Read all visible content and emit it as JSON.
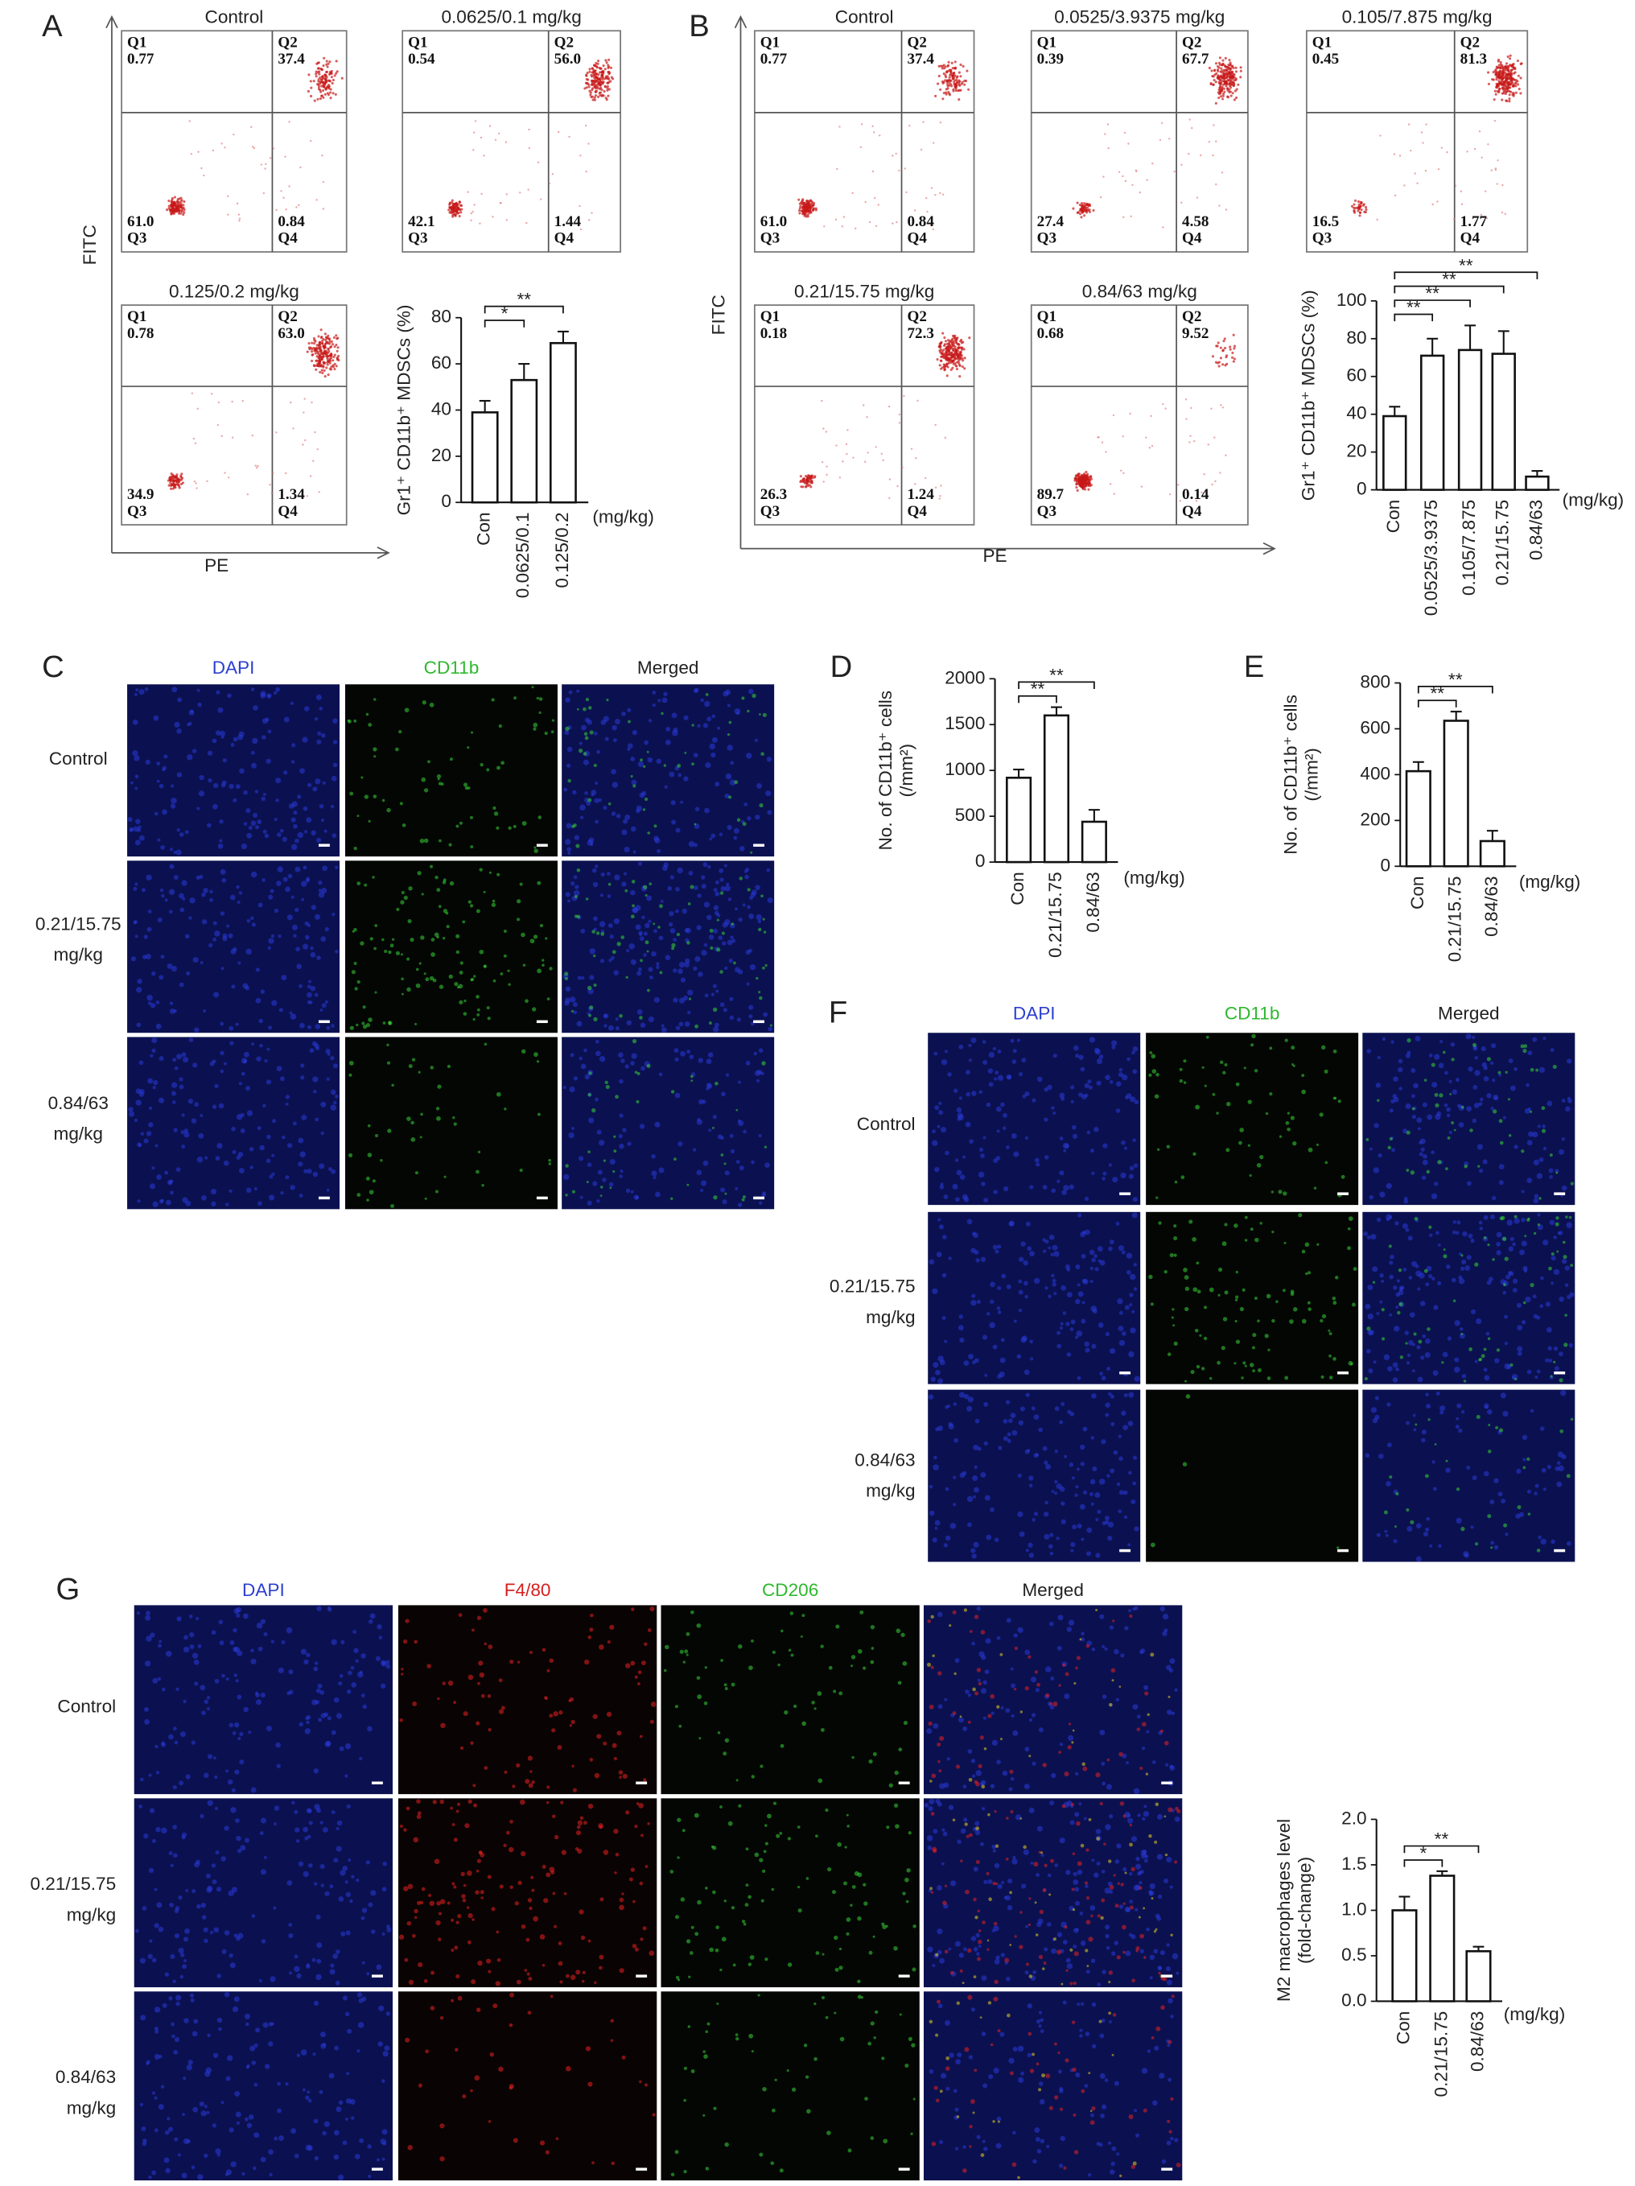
{
  "panel_letters": [
    "A",
    "B",
    "C",
    "D",
    "E",
    "F",
    "G"
  ],
  "flow_cytometry": {
    "y_axis_label": "FITC",
    "x_axis_label": "PE",
    "quadrant_names": [
      "Q1",
      "Q2",
      "Q3",
      "Q4"
    ],
    "panel_a": [
      {
        "title": "Control",
        "values": [
          "0.77",
          "37.4",
          "61.0",
          "0.84"
        ]
      },
      {
        "title": "0.0625/0.1 mg/kg",
        "values": [
          "0.54",
          "56.0",
          "42.1",
          "1.44"
        ]
      },
      {
        "title": "0.125/0.2 mg/kg",
        "values": [
          "0.78",
          "63.0",
          "34.9",
          "1.34"
        ]
      }
    ],
    "panel_b": [
      {
        "title": "Control",
        "values": [
          "0.77",
          "37.4",
          "61.0",
          "0.84"
        ]
      },
      {
        "title": "0.0525/3.9375 mg/kg",
        "values": [
          "0.39",
          "67.7",
          "27.4",
          "4.58"
        ]
      },
      {
        "title": "0.105/7.875 mg/kg",
        "values": [
          "0.45",
          "81.3",
          "16.5",
          "1.77"
        ]
      },
      {
        "title": "0.21/15.75 mg/kg",
        "values": [
          "0.18",
          "72.3",
          "26.3",
          "1.24"
        ]
      },
      {
        "title": "0.84/63 mg/kg",
        "values": [
          "0.68",
          "9.52",
          "89.7",
          "0.14"
        ]
      }
    ]
  },
  "immunofluorescence": {
    "panel_c": {
      "channels": [
        "DAPI",
        "CD11b",
        "Merged"
      ],
      "rows": [
        [
          "Control"
        ],
        [
          "0.21/15.75",
          "mg/kg"
        ],
        [
          "0.84/63",
          "mg/kg"
        ]
      ]
    },
    "panel_f": {
      "channels": [
        "DAPI",
        "CD11b",
        "Merged"
      ],
      "rows": [
        [
          "Control"
        ],
        [
          "0.21/15.75",
          "mg/kg"
        ],
        [
          "0.84/63",
          "mg/kg"
        ]
      ]
    },
    "panel_g": {
      "channels": [
        "DAPI",
        "F4/80",
        "CD206",
        "Merged"
      ],
      "rows": [
        [
          "Control"
        ],
        [
          "0.21/15.75",
          "mg/kg"
        ],
        [
          "0.84/63",
          "mg/kg"
        ]
      ]
    }
  },
  "chart_data": [
    {
      "type": "bar",
      "ylabel": [
        "Gr1⁺ CD11b⁺ MDSCs (%)"
      ],
      "x_unit": "(mg/kg)",
      "categories": [
        "Con",
        "0.0625/0.1",
        "0.125/0.2"
      ],
      "values": [
        39,
        53,
        69
      ],
      "errors": [
        5,
        7,
        5
      ],
      "ylim": [
        0,
        80
      ],
      "yticks": [
        0,
        20,
        40,
        60,
        80
      ],
      "significance": [
        "*",
        "**"
      ],
      "color": "#ffffff"
    },
    {
      "type": "bar",
      "ylabel": [
        "Gr1⁺ CD11b⁺ MDSCs (%)"
      ],
      "x_unit": "(mg/kg)",
      "categories": [
        "Con",
        "0.0525/3.9375",
        "0.105/7.875",
        "0.21/15.75",
        "0.84/63"
      ],
      "values": [
        39,
        71,
        74,
        72,
        7
      ],
      "errors": [
        5,
        9,
        13,
        12,
        3
      ],
      "ylim": [
        0,
        100
      ],
      "yticks": [
        0,
        20,
        40,
        60,
        80,
        100
      ],
      "significance": [
        "**",
        "**",
        "**",
        "**"
      ],
      "color": "#ffffff"
    },
    {
      "type": "bar",
      "ylabel": [
        "No. of CD11b⁺ cells",
        "(/mm²)"
      ],
      "x_unit": "(mg/kg)",
      "categories": [
        "Con",
        "0.21/15.75",
        "0.84/63"
      ],
      "values": [
        920,
        1600,
        440
      ],
      "errors": [
        90,
        90,
        130
      ],
      "ylim": [
        0,
        2000
      ],
      "yticks": [
        0,
        500,
        1000,
        1500,
        2000
      ],
      "significance": [
        "**",
        "**"
      ],
      "color": "#ffffff"
    },
    {
      "type": "bar",
      "ylabel": [
        "No. of CD11b⁺ cells",
        "(/mm²)"
      ],
      "x_unit": "(mg/kg)",
      "categories": [
        "Con",
        "0.21/15.75",
        "0.84/63"
      ],
      "values": [
        415,
        635,
        110
      ],
      "errors": [
        40,
        40,
        45
      ],
      "ylim": [
        0,
        800
      ],
      "yticks": [
        0,
        200,
        400,
        600,
        800
      ],
      "significance": [
        "**",
        "**"
      ],
      "color": "#ffffff"
    },
    {
      "type": "bar",
      "ylabel": [
        "M2 macrophages level",
        "(fold-change)"
      ],
      "x_unit": "(mg/kg)",
      "categories": [
        "Con",
        "0.21/15.75",
        "0.84/63"
      ],
      "values": [
        1.0,
        1.38,
        0.55
      ],
      "errors": [
        0.15,
        0.05,
        0.05
      ],
      "ylim": [
        0,
        2
      ],
      "yticks": [
        {
          "value": 0,
          "label": "0.0"
        },
        0.5,
        {
          "value": 1,
          "label": "1.0"
        },
        1.5,
        {
          "value": 2,
          "label": "2.0"
        }
      ],
      "significance": [
        "*",
        "**"
      ],
      "color": "#ffffff"
    }
  ]
}
